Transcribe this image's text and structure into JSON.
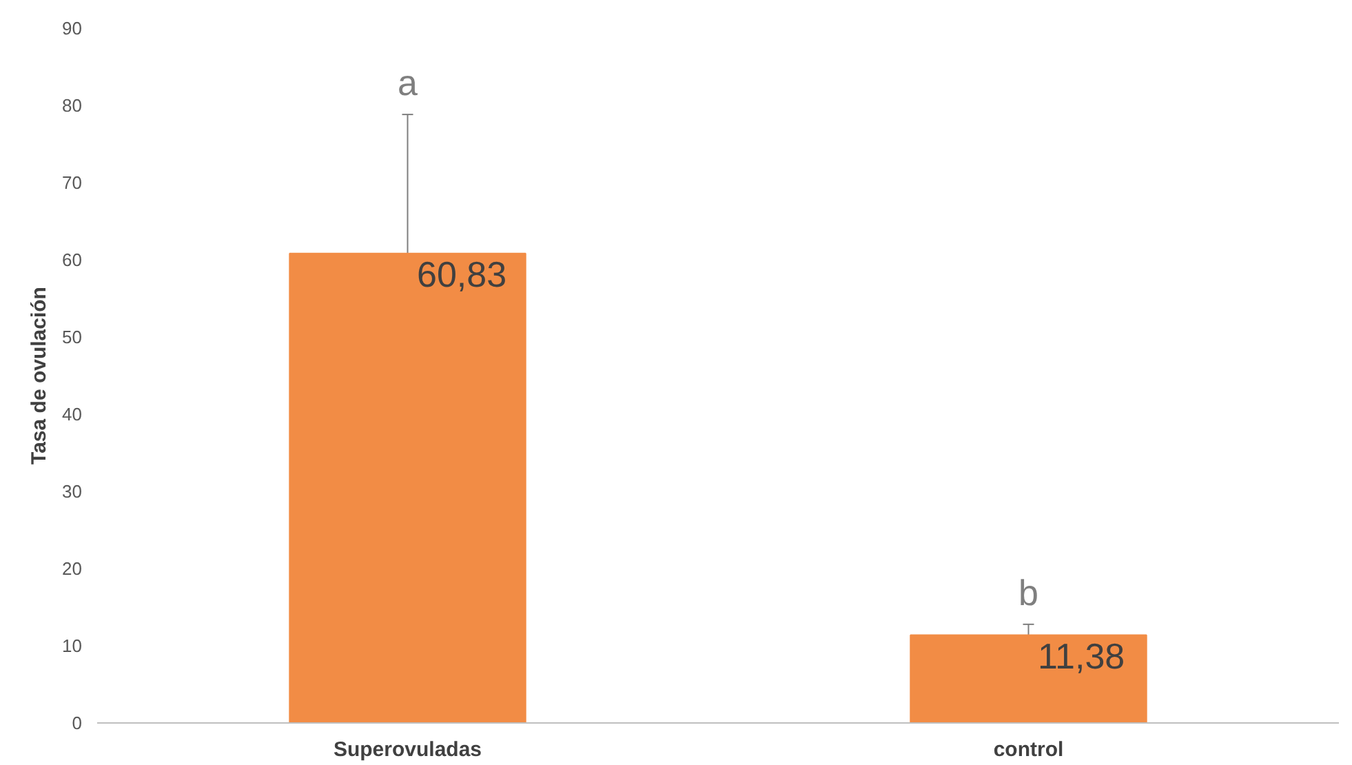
{
  "chart_data": {
    "type": "bar",
    "ylabel": "Tasa de ovulación",
    "categories": [
      "Superovuladas",
      "control"
    ],
    "values": [
      60.83,
      11.38
    ],
    "errors": [
      18,
      1.4
    ],
    "color": "#f28c45",
    "value_labels": [
      "60,83",
      "11,38"
    ],
    "annotations": [
      "a",
      "b"
    ],
    "ylim": [
      0,
      90
    ],
    "yticks": [
      0,
      10,
      20,
      30,
      40,
      50,
      60,
      70,
      80,
      90
    ],
    "grid": false
  }
}
